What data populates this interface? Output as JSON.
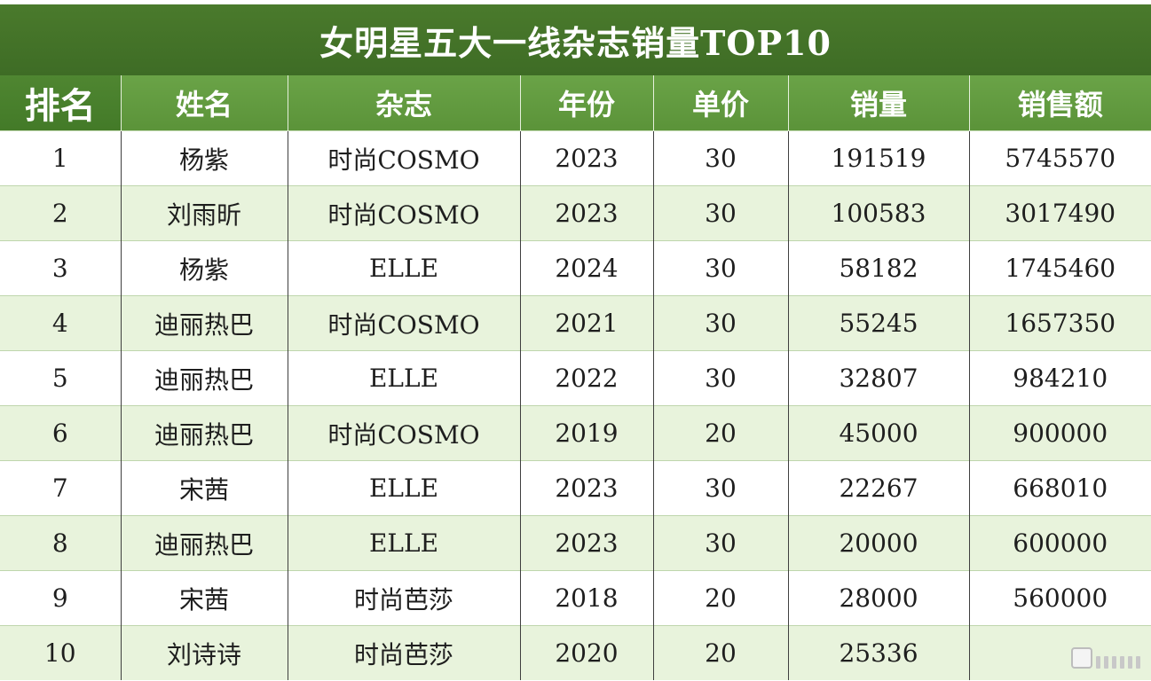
{
  "title": "女明星五大一线杂志销量TOP10",
  "columns": [
    "排名",
    "姓名",
    "杂志",
    "年份",
    "单价",
    "销量",
    "销售额"
  ],
  "rows": [
    [
      "1",
      "杨紫",
      "时尚COSMO",
      "2023",
      "30",
      "191519",
      "5745570"
    ],
    [
      "2",
      "刘雨昕",
      "时尚COSMO",
      "2023",
      "30",
      "100583",
      "3017490"
    ],
    [
      "3",
      "杨紫",
      "ELLE",
      "2024",
      "30",
      "58182",
      "1745460"
    ],
    [
      "4",
      "迪丽热巴",
      "时尚COSMO",
      "2021",
      "30",
      "55245",
      "1657350"
    ],
    [
      "5",
      "迪丽热巴",
      "ELLE",
      "2022",
      "30",
      "32807",
      "984210"
    ],
    [
      "6",
      "迪丽热巴",
      "时尚COSMO",
      "2019",
      "20",
      "45000",
      "900000"
    ],
    [
      "7",
      "宋茜",
      "ELLE",
      "2023",
      "30",
      "22267",
      "668010"
    ],
    [
      "8",
      "迪丽热巴",
      "ELLE",
      "2023",
      "30",
      "20000",
      "600000"
    ],
    [
      "9",
      "宋茜",
      "时尚芭莎",
      "2018",
      "20",
      "28000",
      "560000"
    ],
    [
      "10",
      "刘诗诗",
      "时尚芭莎",
      "2020",
      "20",
      "25336",
      ""
    ]
  ],
  "colors": {
    "title_bg": "#3e6c25",
    "header_bg": "#5b9339",
    "row_alt_bg": "#e8f3dc"
  },
  "watermark": {
    "icon": "weibo-watermark-icon"
  }
}
